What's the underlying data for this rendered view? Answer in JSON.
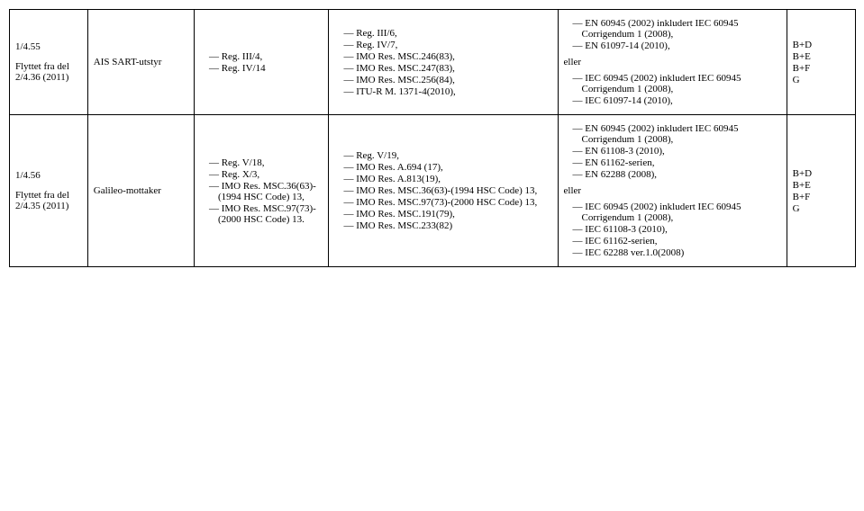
{
  "rows": [
    {
      "id": {
        "line1": "1/4.55",
        "line2": "Flyttet fra del 2/4.36 (2011)"
      },
      "equip": "AIS SART-utstyr",
      "col3": [
        "Reg. III/4,",
        "Reg. IV/14"
      ],
      "col4": [
        "Reg. III/6,",
        "Reg. IV/7,",
        "IMO Res. MSC.246(83),",
        "IMO Res. MSC.247(83),",
        "IMO Res. MSC.256(84),",
        "ITU-R M. 1371-4(2010),"
      ],
      "col5_top": [
        "EN 60945 (2002) inkludert IEC 60945 Corrigendum 1 (2008),",
        "EN 61097-14 (2010),"
      ],
      "col5_eller": "eller",
      "col5_bottom": [
        "IEC 60945 (2002) inkludert IEC 60945 Corrigendum 1 (2008),",
        "IEC 61097-14 (2010),"
      ],
      "col6": [
        "B+D",
        "B+E",
        "B+F",
        "G"
      ]
    },
    {
      "id": {
        "line1": "1/4.56",
        "line2": "Flyttet fra del 2/4.35 (2011)"
      },
      "equip": "Galileo-mottaker",
      "col3": [
        "Reg. V/18,",
        "Reg. X/3,",
        "IMO Res. MSC.36(63)-(1994 HSC Code) 13,",
        "IMO Res. MSC.97(73)-(2000 HSC Code) 13."
      ],
      "col4": [
        "Reg. V/19,",
        "IMO Res. A.694 (17),",
        "IMO Res. A.813(19),",
        "IMO Res. MSC.36(63)-(1994 HSC Code) 13,",
        "IMO Res. MSC.97(73)-(2000 HSC Code) 13,",
        "IMO Res. MSC.191(79),",
        "IMO Res. MSC.233(82)"
      ],
      "col5_top": [
        "EN 60945 (2002) inkludert IEC 60945 Corrigendum 1 (2008),",
        "EN 61108-3 (2010),",
        "EN 61162-serien,",
        "EN 62288 (2008),"
      ],
      "col5_eller": "eller",
      "col5_bottom": [
        "IEC 60945 (2002) inkludert IEC 60945 Corrigendum 1 (2008),",
        "IEC 61108-3 (2010),",
        "IEC 61162-serien,",
        "IEC 62288 ver.1.0(2008)"
      ],
      "col6": [
        "B+D",
        "B+E",
        "B+F",
        "G"
      ]
    }
  ]
}
